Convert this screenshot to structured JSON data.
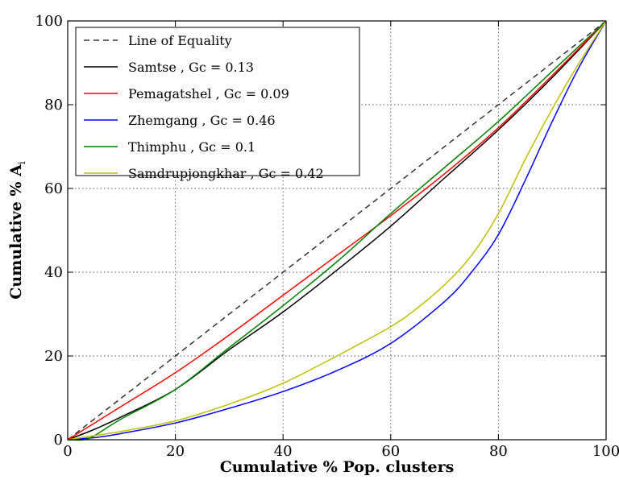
{
  "chart_data": {
    "type": "line",
    "xlabel": "Cumulative % Pop. clusters",
    "ylabel_main": "Cumulative % A",
    "ylabel_sub": "i",
    "xlim": [
      0,
      100
    ],
    "ylim": [
      0,
      100
    ],
    "xticks": [
      "0",
      "20",
      "40",
      "60",
      "80",
      "100"
    ],
    "yticks": [
      "0",
      "20",
      "40",
      "60",
      "80",
      "100"
    ],
    "grid": true,
    "legend_position": "top-left",
    "series": [
      {
        "name": "Line of Equality",
        "color": "#333333",
        "style": "dashed",
        "x": [
          0,
          100
        ],
        "y": [
          0,
          100
        ]
      },
      {
        "name": "Samtse , Gc = 0.13",
        "color": "#000000",
        "style": "solid",
        "x": [
          0,
          5,
          10,
          20,
          30,
          40,
          50,
          60,
          70,
          80,
          90,
          100
        ],
        "y": [
          0,
          2.5,
          5.5,
          12,
          21.5,
          30.5,
          40.5,
          51,
          62.5,
          74,
          86.5,
          100
        ]
      },
      {
        "name": "Pemagatshel , Gc = 0.09",
        "color": "#ff0000",
        "style": "solid",
        "x": [
          0,
          5,
          10,
          20,
          30,
          40,
          50,
          60,
          70,
          80,
          90,
          100
        ],
        "y": [
          0,
          4,
          8,
          16,
          25,
          34.5,
          44,
          53.5,
          63.5,
          74.5,
          87,
          100
        ]
      },
      {
        "name": "Zhemgang , Gc = 0.46",
        "color": "#0000ff",
        "style": "solid",
        "x": [
          0,
          5,
          10,
          20,
          30,
          40,
          50,
          60,
          70,
          75,
          80,
          85,
          90,
          95,
          100
        ],
        "y": [
          0,
          0.5,
          1.5,
          4,
          7.5,
          11.5,
          16.5,
          23,
          33,
          40,
          49,
          62,
          76,
          89,
          100
        ]
      },
      {
        "name": "Thimphu , Gc = 0.1",
        "color": "#008000",
        "style": "solid",
        "x": [
          0,
          3,
          5,
          10,
          20,
          30,
          40,
          50,
          60,
          70,
          80,
          90,
          100
        ],
        "y": [
          0,
          0,
          1,
          5,
          12,
          22,
          32,
          42.5,
          54,
          65,
          76,
          88,
          100
        ]
      },
      {
        "name": "Samdrupjongkhar , Gc = 0.42",
        "color": "#bfbf00",
        "style": "solid",
        "x": [
          0,
          5,
          10,
          20,
          30,
          40,
          50,
          60,
          65,
          70,
          75,
          80,
          85,
          90,
          95,
          100
        ],
        "y": [
          0,
          1,
          2,
          4.5,
          8.5,
          13.5,
          20,
          27,
          31.5,
          37,
          44,
          54,
          67,
          79,
          90,
          100
        ]
      }
    ]
  }
}
